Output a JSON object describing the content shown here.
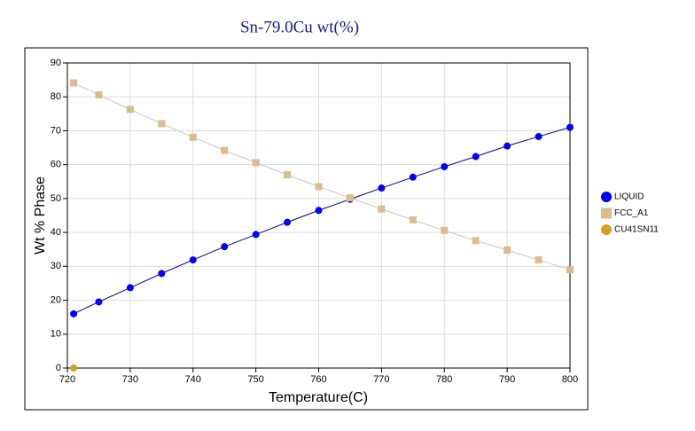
{
  "chart_data": {
    "type": "line",
    "title": "Sn-79.0Cu wt(%)",
    "xlabel": "Temperature(C)",
    "ylabel": "Wt % Phase",
    "x": [
      721,
      725,
      730,
      735,
      740,
      745,
      750,
      755,
      760,
      765,
      770,
      775,
      780,
      785,
      790,
      795,
      800
    ],
    "series": [
      {
        "name": "LIQUID",
        "color": "#0000ff",
        "line_color": "#000080",
        "values": [
          16.0,
          19.5,
          23.7,
          27.9,
          31.9,
          35.8,
          39.4,
          43.0,
          46.5,
          49.8,
          53.1,
          56.3,
          59.4,
          62.4,
          65.5,
          68.3,
          71.0
        ]
      },
      {
        "name": "FCC_A1",
        "color": "#dcbb8c",
        "line_color": "#c8c8c8",
        "values": [
          84.1,
          80.6,
          76.3,
          72.1,
          68.1,
          64.2,
          60.6,
          57.0,
          53.5,
          50.2,
          46.9,
          43.7,
          40.6,
          37.6,
          34.8,
          31.9,
          29.0
        ]
      },
      {
        "name": "CU41SN11",
        "color": "#d4a020",
        "line_color": "#d4a020",
        "values": [
          0,
          null,
          null,
          null,
          null,
          null,
          null,
          null,
          null,
          null,
          null,
          null,
          null,
          null,
          null,
          null,
          null
        ]
      }
    ],
    "xlim": [
      720,
      800
    ],
    "xticks": [
      720,
      730,
      740,
      750,
      760,
      770,
      780,
      790,
      800
    ],
    "ylim": [
      0,
      90
    ],
    "yticks": [
      0,
      10,
      20,
      30,
      40,
      50,
      60,
      70,
      80,
      90
    ],
    "grid": true,
    "legend": "right"
  }
}
